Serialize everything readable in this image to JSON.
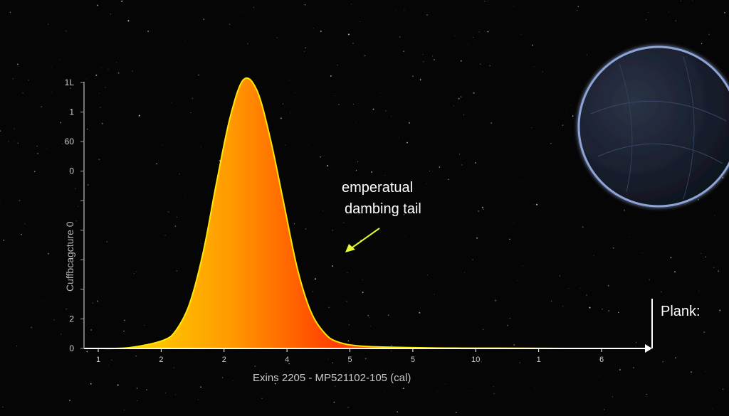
{
  "chart_data": {
    "type": "area",
    "title": "",
    "xlabel": "Exins 2205 - MP521102-105 (cal)",
    "ylabel": "Cuffbcagcture 0",
    "x_tick_labels": [
      "1",
      "2",
      "2",
      "4",
      "5",
      "5",
      "10",
      "1",
      "6"
    ],
    "y_tick_labels": [
      "1L",
      "1",
      "60",
      "0",
      "",
      "",
      "",
      "",
      "2",
      "0"
    ],
    "x": [
      1,
      1.5,
      2,
      2.2,
      2.4,
      2.6,
      2.8,
      3.0,
      3.2,
      3.4,
      3.6,
      3.8,
      4.0,
      4.2,
      4.4,
      4.6,
      5,
      6,
      7,
      8,
      9
    ],
    "series": [
      {
        "values": [
          0.0,
          0.003,
          0.03,
          0.07,
          0.17,
          0.36,
          0.62,
          0.86,
          1.0,
          0.96,
          0.78,
          0.54,
          0.3,
          0.14,
          0.06,
          0.025,
          0.008,
          0.002,
          0.001,
          0.0,
          0.0
        ]
      }
    ],
    "ylim": [
      0,
      1.1
    ],
    "grid": false,
    "annotation": {
      "line1": "emperatual",
      "line2": "dambing tail"
    },
    "corner_label": "Plank:",
    "colors": {
      "peak": "#ff3d00",
      "edge": "#ffe600",
      "axis": "#ffffff",
      "arrow": "#e8ff2a"
    }
  }
}
